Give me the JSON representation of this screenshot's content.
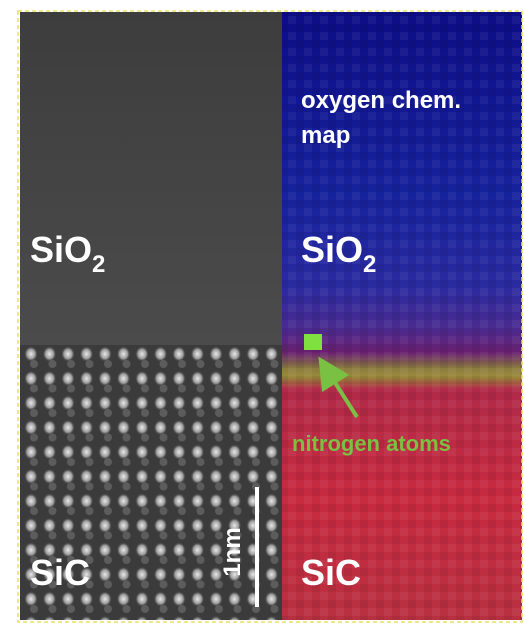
{
  "left_panel": {
    "top_label": {
      "base": "SiO",
      "subscript": "2"
    },
    "bottom_label": "SiC",
    "scale_bar": "1nm"
  },
  "right_panel": {
    "title_lines": [
      "oxygen chem.",
      "map"
    ],
    "top_label": {
      "base": "SiO",
      "subscript": "2"
    },
    "bottom_label": "SiC",
    "annotation": "nitrogen atoms"
  }
}
